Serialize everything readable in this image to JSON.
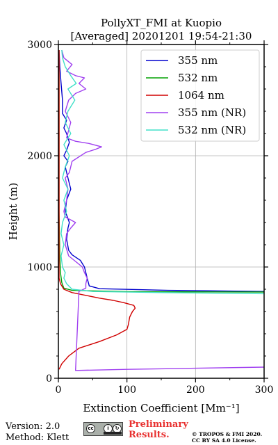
{
  "chart_data": {
    "type": "line",
    "title": "PollyXT_FMI at Kuopio",
    "subtitle": "[Averaged] 20201201 19:54-21:30",
    "xlabel": "Extinction Coefficient [Mm⁻¹]",
    "ylabel": "Height (m)",
    "xlim": [
      0,
      300
    ],
    "ylim": [
      0,
      3000
    ],
    "x_ticks": [
      "0",
      "100",
      "200",
      "300"
    ],
    "y_ticks": [
      "0",
      "1000",
      "2000",
      "3000"
    ],
    "grid": true,
    "legend_placement": "top-right",
    "series": [
      {
        "name": "355 nm",
        "color": "#0000cd",
        "points": [
          [
            300,
            780
          ],
          [
            160,
            790
          ],
          [
            60,
            805
          ],
          [
            45,
            830
          ],
          [
            42,
            900
          ],
          [
            40,
            950
          ],
          [
            38,
            1000
          ],
          [
            32,
            1060
          ],
          [
            20,
            1110
          ],
          [
            15,
            1150
          ],
          [
            12,
            1250
          ],
          [
            14,
            1350
          ],
          [
            16,
            1400
          ],
          [
            10,
            1500
          ],
          [
            12,
            1600
          ],
          [
            18,
            1700
          ],
          [
            14,
            1800
          ],
          [
            10,
            1900
          ],
          [
            14,
            1950
          ],
          [
            8,
            2000
          ],
          [
            12,
            2050
          ],
          [
            16,
            2120
          ],
          [
            12,
            2200
          ],
          [
            8,
            2250
          ],
          [
            12,
            2320
          ],
          [
            6,
            2380
          ],
          [
            6,
            2500
          ],
          [
            4,
            2650
          ],
          [
            2,
            2800
          ],
          [
            1,
            2950
          ]
        ]
      },
      {
        "name": "532 nm",
        "color": "#00a000",
        "points": [
          [
            300,
            775
          ],
          [
            100,
            778
          ],
          [
            20,
            790
          ],
          [
            8,
            810
          ],
          [
            5,
            860
          ],
          [
            3,
            950
          ],
          [
            2,
            1100
          ],
          [
            1,
            1500
          ],
          [
            1,
            2000
          ],
          [
            1,
            2500
          ],
          [
            1,
            2950
          ]
        ]
      },
      {
        "name": "1064 nm",
        "color": "#d00000",
        "points": [
          [
            1,
            80
          ],
          [
            5,
            130
          ],
          [
            15,
            200
          ],
          [
            30,
            270
          ],
          [
            60,
            330
          ],
          [
            85,
            390
          ],
          [
            100,
            440
          ],
          [
            102,
            480
          ],
          [
            104,
            550
          ],
          [
            108,
            600
          ],
          [
            112,
            630
          ],
          [
            110,
            655
          ],
          [
            95,
            680
          ],
          [
            80,
            700
          ],
          [
            60,
            720
          ],
          [
            40,
            745
          ],
          [
            20,
            770
          ],
          [
            8,
            800
          ],
          [
            3,
            850
          ],
          [
            1,
            900
          ],
          [
            1,
            1000
          ],
          [
            1,
            1500
          ],
          [
            1,
            2000
          ],
          [
            1,
            2500
          ],
          [
            1,
            2950
          ]
        ]
      },
      {
        "name": "355 nm (NR)",
        "color": "#a040f0",
        "points": [
          [
            300,
            100
          ],
          [
            200,
            90
          ],
          [
            100,
            80
          ],
          [
            25,
            70
          ],
          [
            30,
            780
          ],
          [
            40,
            810
          ],
          [
            40,
            850
          ],
          [
            42,
            900
          ],
          [
            38,
            950
          ],
          [
            35,
            1000
          ],
          [
            25,
            1050
          ],
          [
            15,
            1100
          ],
          [
            10,
            1200
          ],
          [
            12,
            1300
          ],
          [
            18,
            1350
          ],
          [
            25,
            1400
          ],
          [
            10,
            1450
          ],
          [
            8,
            1500
          ],
          [
            12,
            1600
          ],
          [
            14,
            1700
          ],
          [
            10,
            1800
          ],
          [
            16,
            1850
          ],
          [
            20,
            1950
          ],
          [
            40,
            2030
          ],
          [
            55,
            2060
          ],
          [
            63,
            2080
          ],
          [
            45,
            2110
          ],
          [
            25,
            2130
          ],
          [
            12,
            2160
          ],
          [
            18,
            2300
          ],
          [
            10,
            2400
          ],
          [
            15,
            2500
          ],
          [
            25,
            2560
          ],
          [
            40,
            2600
          ],
          [
            30,
            2650
          ],
          [
            38,
            2700
          ],
          [
            25,
            2720
          ],
          [
            12,
            2760
          ],
          [
            20,
            2820
          ],
          [
            8,
            2880
          ],
          [
            5,
            2950
          ]
        ]
      },
      {
        "name": "532 nm (NR)",
        "color": "#40e0c8",
        "points": [
          [
            300,
            760
          ],
          [
            150,
            770
          ],
          [
            50,
            780
          ],
          [
            20,
            800
          ],
          [
            12,
            850
          ],
          [
            8,
            900
          ],
          [
            10,
            950
          ],
          [
            6,
            1000
          ],
          [
            4,
            1100
          ],
          [
            8,
            1200
          ],
          [
            4,
            1300
          ],
          [
            6,
            1400
          ],
          [
            12,
            1500
          ],
          [
            8,
            1600
          ],
          [
            14,
            1700
          ],
          [
            6,
            1800
          ],
          [
            10,
            1900
          ],
          [
            16,
            2000
          ],
          [
            8,
            2100
          ],
          [
            18,
            2200
          ],
          [
            10,
            2300
          ],
          [
            14,
            2400
          ],
          [
            24,
            2500
          ],
          [
            14,
            2600
          ],
          [
            26,
            2650
          ],
          [
            18,
            2720
          ],
          [
            10,
            2800
          ],
          [
            6,
            2880
          ],
          [
            5,
            2950
          ]
        ]
      }
    ]
  },
  "footer": {
    "version": "Version: 2.0",
    "method": "Method: Klett",
    "license_badge": "cc by sa",
    "preliminary_line1": "Preliminary",
    "preliminary_line2": "Results.",
    "copyright_line1": "© TROPOS & FMI 2020.",
    "copyright_line2": "CC BY SA 4.0 License."
  }
}
